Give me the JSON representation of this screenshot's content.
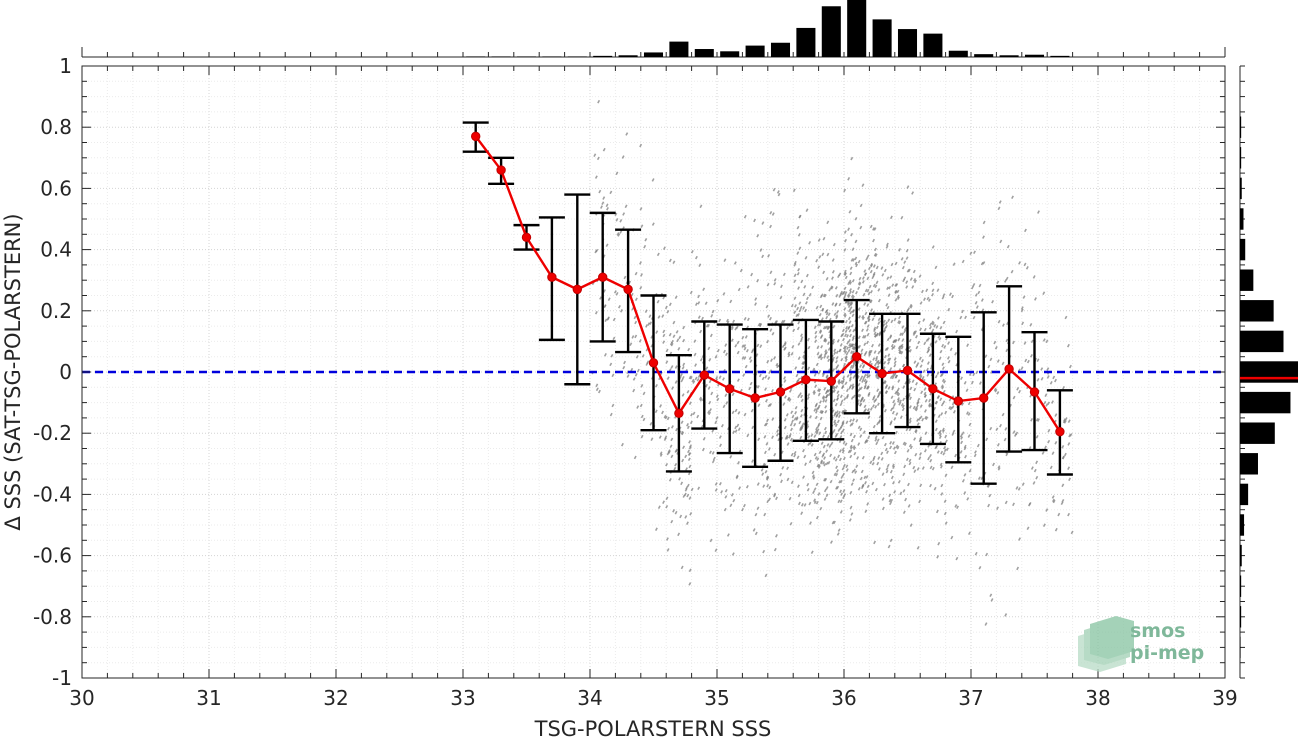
{
  "chart_data": {
    "type": "scatter",
    "xlabel": "TSG-POLARSTERN SSS",
    "ylabel": "Δ SSS (SAT-TSG-POLARSTERN)",
    "xlim": [
      30,
      39
    ],
    "ylim": [
      -1,
      1
    ],
    "xticks": [
      "30",
      "31",
      "32",
      "33",
      "34",
      "35",
      "36",
      "37",
      "38",
      "39"
    ],
    "yticks": [
      "-1",
      "-0.8",
      "-0.6",
      "-0.4",
      "-0.2",
      "0",
      "0.2",
      "0.4",
      "0.6",
      "0.8",
      "1"
    ],
    "grid": true,
    "reference_line": {
      "y": 0,
      "color": "#0000dd",
      "style": "dashed"
    },
    "binned_mean": {
      "color": "#ee0000",
      "x": [
        33.1,
        33.3,
        33.5,
        33.7,
        33.9,
        34.1,
        34.3,
        34.5,
        34.7,
        34.9,
        35.1,
        35.3,
        35.5,
        35.7,
        35.9,
        36.1,
        36.3,
        36.5,
        36.7,
        36.9,
        37.1,
        37.3,
        37.5,
        37.7
      ],
      "mean": [
        0.77,
        0.66,
        0.44,
        0.31,
        0.27,
        0.31,
        0.27,
        0.03,
        -0.135,
        -0.01,
        -0.055,
        -0.085,
        -0.065,
        -0.025,
        -0.03,
        0.05,
        -0.005,
        0.005,
        -0.055,
        -0.095,
        -0.085,
        0.01,
        -0.065,
        -0.195
      ],
      "upper": [
        0.815,
        0.7,
        0.48,
        0.505,
        0.58,
        0.52,
        0.465,
        0.25,
        0.055,
        0.165,
        0.155,
        0.14,
        0.155,
        0.17,
        0.165,
        0.235,
        0.19,
        0.19,
        0.125,
        0.115,
        0.195,
        0.28,
        0.13,
        -0.06
      ],
      "lower": [
        0.72,
        0.615,
        0.4,
        0.105,
        -0.04,
        0.1,
        0.065,
        -0.19,
        -0.325,
        -0.185,
        -0.265,
        -0.31,
        -0.29,
        -0.225,
        -0.22,
        -0.135,
        -0.2,
        -0.18,
        -0.235,
        -0.295,
        -0.365,
        -0.26,
        -0.255,
        -0.335
      ]
    },
    "scatter": {
      "color": "#808080",
      "description_range_x": [
        34.0,
        37.8
      ]
    },
    "top_histogram": {
      "bin_centers": [
        33.1,
        33.3,
        33.5,
        33.7,
        33.9,
        34.1,
        34.3,
        34.5,
        34.7,
        34.9,
        35.1,
        35.3,
        35.5,
        35.7,
        35.9,
        36.1,
        36.3,
        36.5,
        36.7,
        36.9,
        37.1,
        37.3,
        37.5,
        37.7
      ],
      "relative_counts": [
        0.01,
        0.01,
        0.01,
        0.01,
        0.01,
        0.02,
        0.03,
        0.08,
        0.27,
        0.14,
        0.1,
        0.2,
        0.25,
        0.51,
        0.89,
        1.0,
        0.66,
        0.49,
        0.41,
        0.11,
        0.05,
        0.03,
        0.04,
        0.02
      ]
    },
    "right_histogram": {
      "bin_centers": [
        0.8,
        0.7,
        0.6,
        0.5,
        0.4,
        0.3,
        0.2,
        0.1,
        0.0,
        -0.1,
        -0.2,
        -0.3,
        -0.4,
        -0.5,
        -0.6,
        -0.7,
        -0.8,
        -0.9
      ],
      "relative_counts": [
        0.02,
        0.02,
        0.03,
        0.06,
        0.09,
        0.23,
        0.58,
        0.75,
        1.0,
        0.87,
        0.6,
        0.31,
        0.14,
        0.07,
        0.03,
        0.02,
        0.02,
        0.01
      ],
      "mean_marker_y": -0.02,
      "mean_marker_color": "#ee0000"
    }
  },
  "logo": {
    "line1": "smos",
    "line2": "pi-mep"
  }
}
